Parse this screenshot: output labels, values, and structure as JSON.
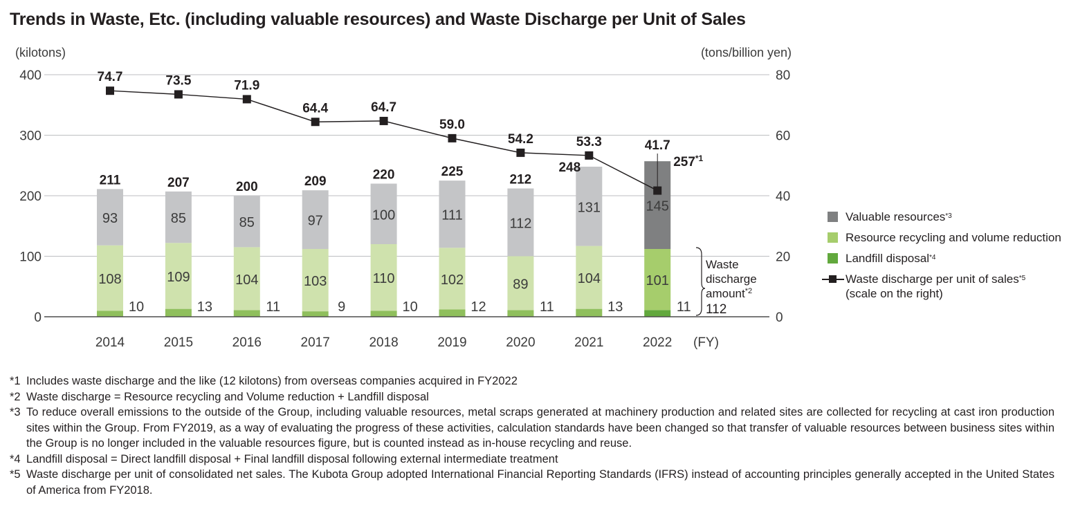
{
  "title": "Trends in Waste, Etc. (including valuable resources) and Waste Discharge per Unit of Sales",
  "chart_data": {
    "type": "bar",
    "categories": [
      "2014",
      "2015",
      "2016",
      "2017",
      "2018",
      "2019",
      "2020",
      "2021",
      "2022"
    ],
    "x_unit": "(FY)",
    "y_left_label": "(kilotons)",
    "y_right_label": "(tons/billion yen)",
    "y_left_ticks": [
      "0",
      "100",
      "200",
      "300",
      "400"
    ],
    "y_right_ticks": [
      "0",
      "20",
      "40",
      "60",
      "80"
    ],
    "ylim_left": [
      0,
      400
    ],
    "ylim_right": [
      0,
      80
    ],
    "stack_order": [
      "landfill",
      "recycling",
      "valuable"
    ],
    "series": [
      {
        "key": "valuable",
        "name": "Valuable resources",
        "note": "*3",
        "axis": "left",
        "values": [
          93,
          85,
          85,
          97,
          100,
          111,
          112,
          131,
          145
        ],
        "labels": [
          "93",
          "85",
          "85",
          "97",
          "100",
          "111",
          "112",
          "131",
          "145"
        ]
      },
      {
        "key": "recycling",
        "name": "Resource recycling and volume reduction",
        "axis": "left",
        "values": [
          108,
          109,
          104,
          103,
          110,
          102,
          89,
          104,
          101
        ],
        "labels": [
          "108",
          "109",
          "104",
          "103",
          "110",
          "102",
          "89",
          "104",
          "101"
        ]
      },
      {
        "key": "landfill",
        "name": "Landfill disposal",
        "note": "*4",
        "axis": "left",
        "values": [
          10,
          13,
          11,
          9,
          10,
          12,
          11,
          13,
          11
        ],
        "labels": [
          "10",
          "13",
          "11",
          "9",
          "10",
          "12",
          "11",
          "13",
          "11"
        ]
      },
      {
        "key": "per_unit",
        "name": "Waste discharge per unit of sales",
        "note": "*5",
        "sub": "(scale on the right)",
        "type": "line",
        "axis": "right",
        "values": [
          74.7,
          73.5,
          71.9,
          64.4,
          64.7,
          59.0,
          54.2,
          53.3,
          41.7
        ],
        "labels": [
          "74.7",
          "73.5",
          "71.9",
          "64.4",
          "64.7",
          "59.0",
          "54.2",
          "53.3",
          "41.7"
        ]
      }
    ],
    "totals": [
      211,
      207,
      200,
      209,
      220,
      225,
      212,
      248,
      257
    ],
    "total_labels": [
      "211",
      "207",
      "200",
      "209",
      "220",
      "225",
      "212",
      "248",
      "257"
    ],
    "total_note_last": "*1",
    "brace_label": [
      "Waste",
      "discharge",
      "amount"
    ],
    "brace_note": "*2",
    "brace_value": "112",
    "colors": {
      "valuable": "#c4c5c7",
      "recycling": "#cfe2ad",
      "landfill": "#8fbf5c",
      "valuable_hl": "#7f8081",
      "recycling_hl": "#a6cd6c",
      "landfill_hl": "#62a83d",
      "line": "#231f20",
      "axis": "#4d4d4d",
      "grid": "#bcbec0"
    }
  },
  "legend": [
    {
      "label": "Valuable resources",
      "note": "*3",
      "color": "#7f8081"
    },
    {
      "label": "Resource recycling and volume reduction",
      "note": "",
      "color": "#a6cd6c"
    },
    {
      "label": "Landfill disposal",
      "note": "*4",
      "color": "#62a83d"
    },
    {
      "label": "Waste discharge per unit of sales",
      "note": "*5",
      "sub": "(scale on the right)",
      "color": "#231f20"
    }
  ],
  "notes": [
    {
      "mark": "*1",
      "text": "Includes waste discharge and the like (12 kilotons) from overseas companies acquired in FY2022"
    },
    {
      "mark": "*2",
      "text": "Waste discharge = Resource recycling and Volume reduction + Landfill disposal"
    },
    {
      "mark": "*3",
      "text": "To reduce overall emissions to the outside of the Group, including valuable resources, metal scraps generated at machinery production and related sites are collected for recycling at cast iron production sites within the Group. From FY2019, as a way of evaluating the progress of these activities, calculation standards have been changed so that transfer of valuable resources between business sites within the Group is no longer included in the valuable resources figure, but is counted instead as in-house recycling and reuse."
    },
    {
      "mark": "*4",
      "text": "Landfill disposal = Direct landfill disposal + Final landfill disposal following external intermediate treatment"
    },
    {
      "mark": "*5",
      "text": "Waste discharge per unit of consolidated net sales. The Kubota Group adopted International Financial Reporting Standards (IFRS) instead of accounting principles generally accepted in the United States of America from FY2018."
    }
  ]
}
